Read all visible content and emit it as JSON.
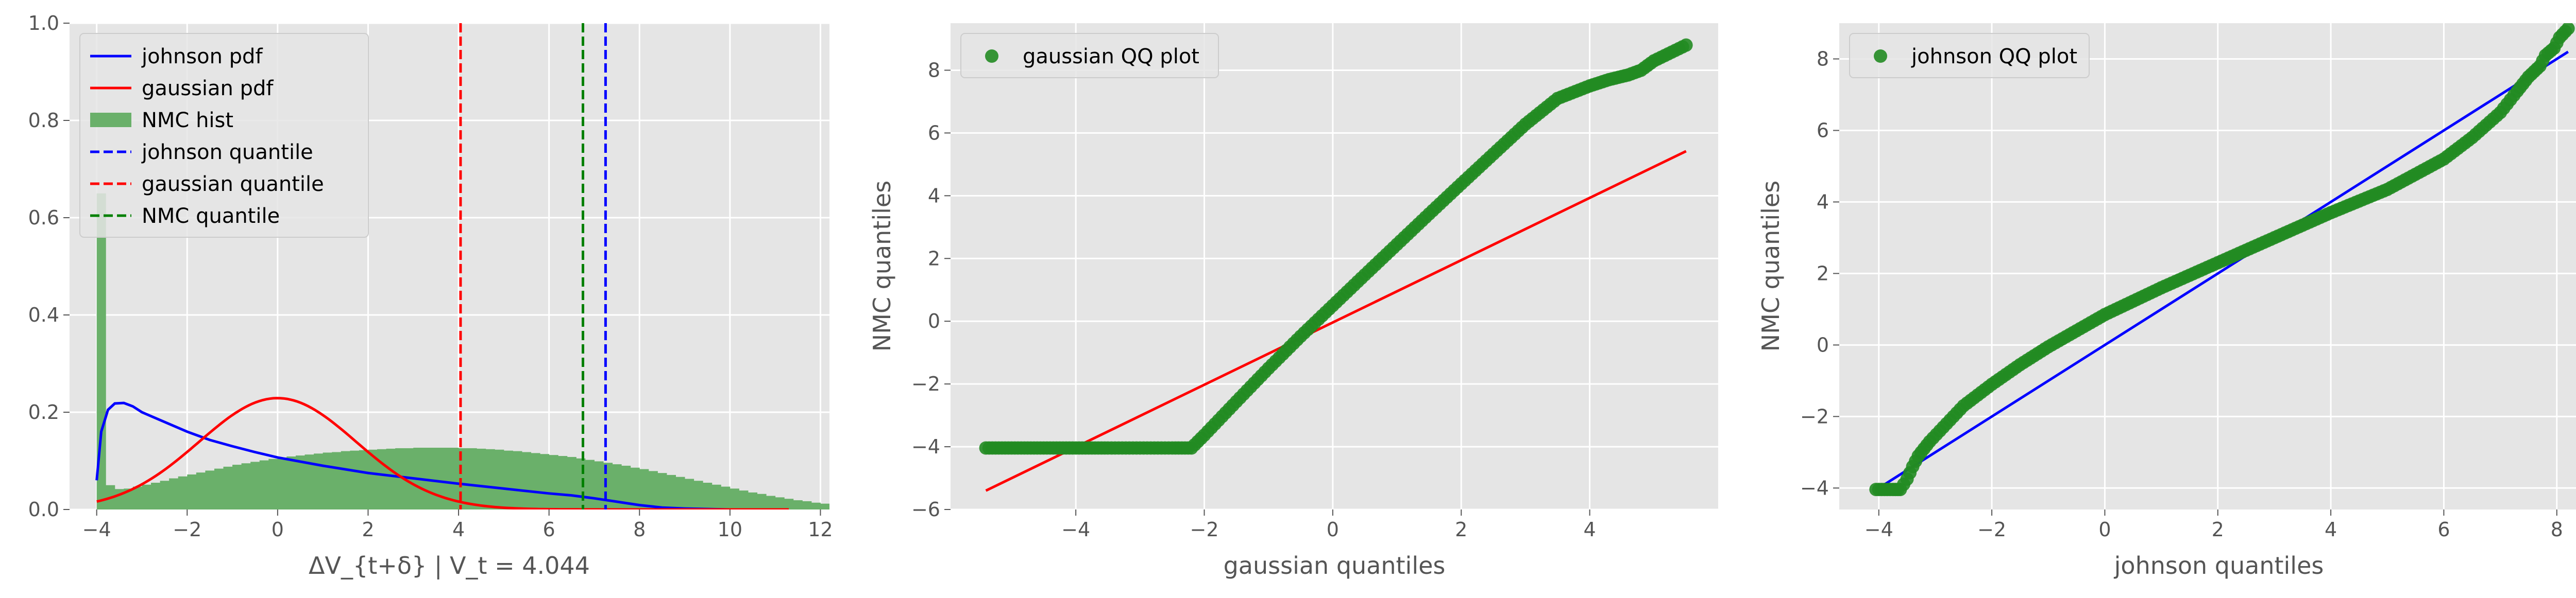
{
  "chart_data": [
    {
      "type": "histogram",
      "title": "",
      "xlabel": "ΔV_{t+δ} | V_t = 4.044",
      "ylabel": "",
      "xlim": [
        -4.6,
        12.2
      ],
      "ylim": [
        0,
        1.0
      ],
      "xticks": [
        -4,
        -2,
        0,
        2,
        4,
        6,
        8,
        10,
        12
      ],
      "yticks": [
        0.0,
        0.2,
        0.4,
        0.6,
        0.8,
        1.0
      ],
      "grid": true,
      "legend_position": "upper-left",
      "series": [
        {
          "name": "johnson pdf",
          "kind": "line",
          "color": "#0000ff",
          "x": [
            -4.0,
            -3.9,
            -3.75,
            -3.6,
            -3.4,
            -3.2,
            -3.0,
            -2.5,
            -2.0,
            -1.5,
            -1.0,
            -0.5,
            0.0,
            1.0,
            2.0,
            3.0,
            4.0,
            5.0,
            6.0,
            6.5,
            7.0,
            7.5,
            8.0,
            8.5,
            9.0,
            10.0,
            11.3
          ],
          "y": [
            0.06,
            0.16,
            0.205,
            0.218,
            0.219,
            0.212,
            0.2,
            0.18,
            0.16,
            0.143,
            0.13,
            0.118,
            0.107,
            0.09,
            0.075,
            0.064,
            0.053,
            0.043,
            0.033,
            0.029,
            0.023,
            0.016,
            0.009,
            0.004,
            0.002,
            0.0,
            0.0
          ]
        },
        {
          "name": "gaussian pdf",
          "kind": "line",
          "color": "#ff0000",
          "mean": 0.0,
          "sd": 1.74,
          "x_range": [
            -4.0,
            11.3
          ],
          "peak": 0.229
        },
        {
          "name": "NMC hist",
          "kind": "hist",
          "color": "#6ab06a",
          "bin_start": -4.0,
          "bin_width": 0.2,
          "values": [
            0.65,
            0.05,
            0.042,
            0.043,
            0.047,
            0.051,
            0.055,
            0.059,
            0.064,
            0.068,
            0.072,
            0.076,
            0.08,
            0.084,
            0.088,
            0.092,
            0.095,
            0.098,
            0.101,
            0.104,
            0.107,
            0.109,
            0.111,
            0.113,
            0.115,
            0.117,
            0.118,
            0.12,
            0.121,
            0.122,
            0.123,
            0.124,
            0.125,
            0.126,
            0.126,
            0.127,
            0.127,
            0.127,
            0.127,
            0.127,
            0.126,
            0.126,
            0.125,
            0.124,
            0.123,
            0.121,
            0.12,
            0.118,
            0.116,
            0.114,
            0.112,
            0.11,
            0.108,
            0.105,
            0.102,
            0.099,
            0.096,
            0.093,
            0.09,
            0.086,
            0.083,
            0.079,
            0.075,
            0.071,
            0.067,
            0.063,
            0.059,
            0.055,
            0.051,
            0.047,
            0.043,
            0.039,
            0.035,
            0.032,
            0.028,
            0.025,
            0.022,
            0.019,
            0.017,
            0.014,
            0.012,
            0.01,
            0.008,
            0.007,
            0.005,
            0.004,
            0.003,
            0.002,
            0.002,
            0.001
          ]
        },
        {
          "name": "johnson quantile",
          "kind": "vline",
          "color": "#0000ff",
          "x": 7.25
        },
        {
          "name": "gaussian quantile",
          "kind": "vline",
          "color": "#ff0000",
          "x": 4.044
        },
        {
          "name": "NMC quantile",
          "kind": "vline",
          "color": "#008000",
          "x": 6.75
        }
      ]
    },
    {
      "type": "scatter",
      "title": "",
      "xlabel": "gaussian quantiles",
      "ylabel": "NMC quantiles",
      "xlim": [
        -5.95,
        6.0
      ],
      "ylim": [
        -6.0,
        9.5
      ],
      "xticks": [
        -4,
        -2,
        0,
        2,
        4
      ],
      "yticks": [
        -6,
        -4,
        -2,
        0,
        2,
        4,
        6,
        8
      ],
      "grid": true,
      "legend_position": "upper-left",
      "series": [
        {
          "name": "gaussian QQ plot",
          "kind": "points",
          "color": "#228b22",
          "x": [
            -5.4,
            -5.0,
            -4.75,
            -4.6,
            -4.5,
            -4.4,
            -4.3,
            -4.2,
            -4.1,
            -4.0,
            -3.8,
            -3.5,
            -3.0,
            -2.5,
            -2.2,
            -2.0,
            -1.5,
            -1.0,
            -0.5,
            0.0,
            0.5,
            1.0,
            1.5,
            2.0,
            2.5,
            3.0,
            3.5,
            4.0,
            4.3,
            4.6,
            4.8,
            5.0,
            5.5
          ],
          "y": [
            -4.04,
            -4.04,
            -4.04,
            -4.04,
            -4.04,
            -4.04,
            -4.04,
            -4.04,
            -4.04,
            -4.04,
            -4.04,
            -4.04,
            -4.04,
            -4.04,
            -4.04,
            -3.63,
            -2.56,
            -1.5,
            -0.48,
            0.5,
            1.48,
            2.45,
            3.42,
            4.38,
            5.33,
            6.28,
            7.1,
            7.5,
            7.7,
            7.85,
            8.0,
            8.3,
            8.8
          ]
        },
        {
          "name": "gaussian fit line",
          "kind": "line",
          "color": "#ff0000",
          "x": [
            -5.4,
            5.5
          ],
          "y": [
            -5.4,
            5.42
          ]
        }
      ]
    },
    {
      "type": "scatter",
      "title": "",
      "xlabel": "johnson quantiles",
      "ylabel": "NMC quantiles",
      "xlim": [
        -4.7,
        8.75
      ],
      "ylim": [
        -4.6,
        9.0
      ],
      "xticks": [
        -4,
        -2,
        0,
        2,
        4,
        6,
        8
      ],
      "yticks": [
        -4,
        -2,
        0,
        2,
        4,
        6,
        8
      ],
      "grid": true,
      "legend_position": "upper-left",
      "series": [
        {
          "name": "johnson QQ plot",
          "kind": "points",
          "color": "#228b22",
          "x": [
            -4.05,
            -3.9,
            -3.75,
            -3.62,
            -3.5,
            -3.4,
            -3.3,
            -3.1,
            -2.8,
            -2.5,
            -2.0,
            -1.5,
            -1.0,
            0.0,
            1.0,
            2.0,
            3.0,
            4.0,
            5.0,
            6.0,
            6.5,
            7.0,
            7.3,
            7.5,
            7.7,
            7.8,
            7.95,
            8.05,
            8.2
          ],
          "y": [
            -4.04,
            -4.04,
            -4.04,
            -4.04,
            -3.75,
            -3.4,
            -3.1,
            -2.7,
            -2.2,
            -1.7,
            -1.1,
            -0.55,
            -0.05,
            0.85,
            1.6,
            2.3,
            3.0,
            3.7,
            4.35,
            5.2,
            5.8,
            6.5,
            7.1,
            7.5,
            7.8,
            8.1,
            8.3,
            8.6,
            8.85
          ]
        },
        {
          "name": "johnson fit line",
          "kind": "line",
          "color": "#0000ff",
          "x": [
            -4.05,
            8.2
          ],
          "y": [
            -4.05,
            8.2
          ]
        }
      ]
    }
  ]
}
